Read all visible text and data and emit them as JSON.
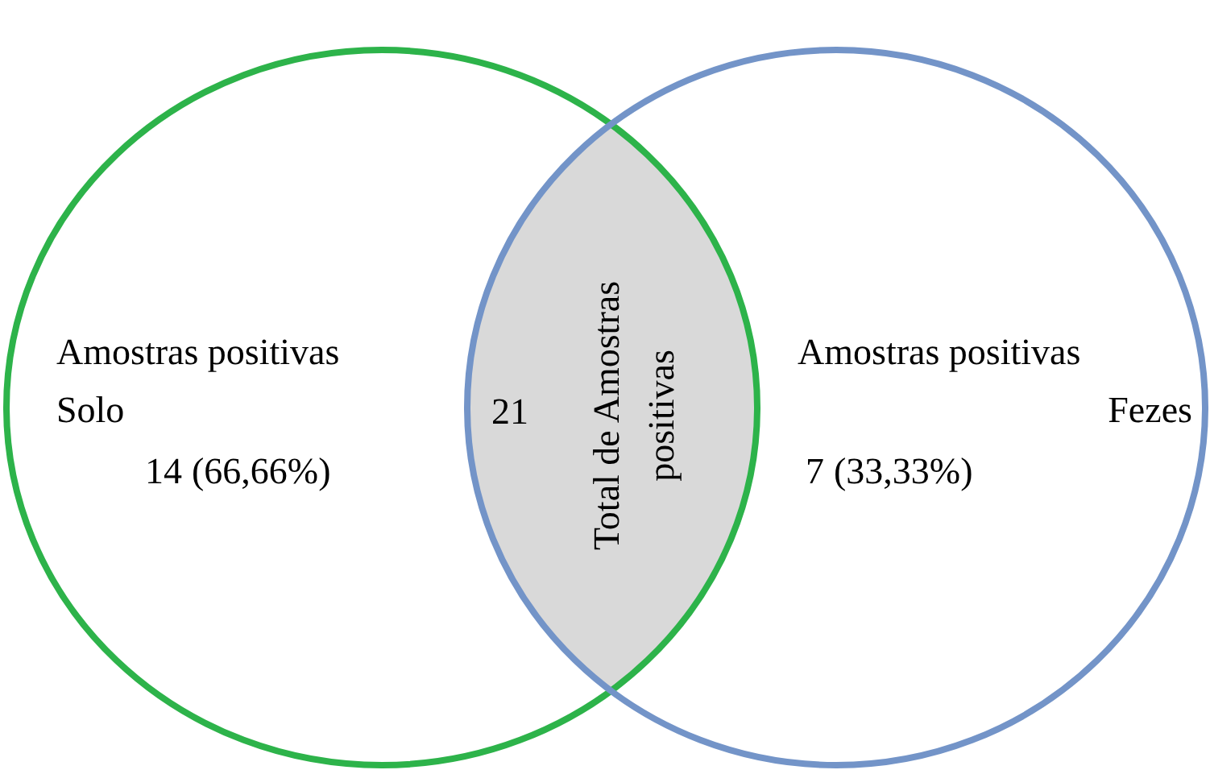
{
  "chart_data": {
    "type": "other",
    "categories": [
      "Amostras positivas\nSolo",
      "Total de Amostras\npositivas",
      "Amostras positivas\nFezes"
    ],
    "values": [
      14,
      21,
      7
    ],
    "data_labels": true,
    "annotations": [
      "(66,66%)",
      null,
      "(33,33%)"
    ],
    "colors": [
      "#2db34a",
      "#d9d9d9",
      "#7394c8"
    ]
  }
}
